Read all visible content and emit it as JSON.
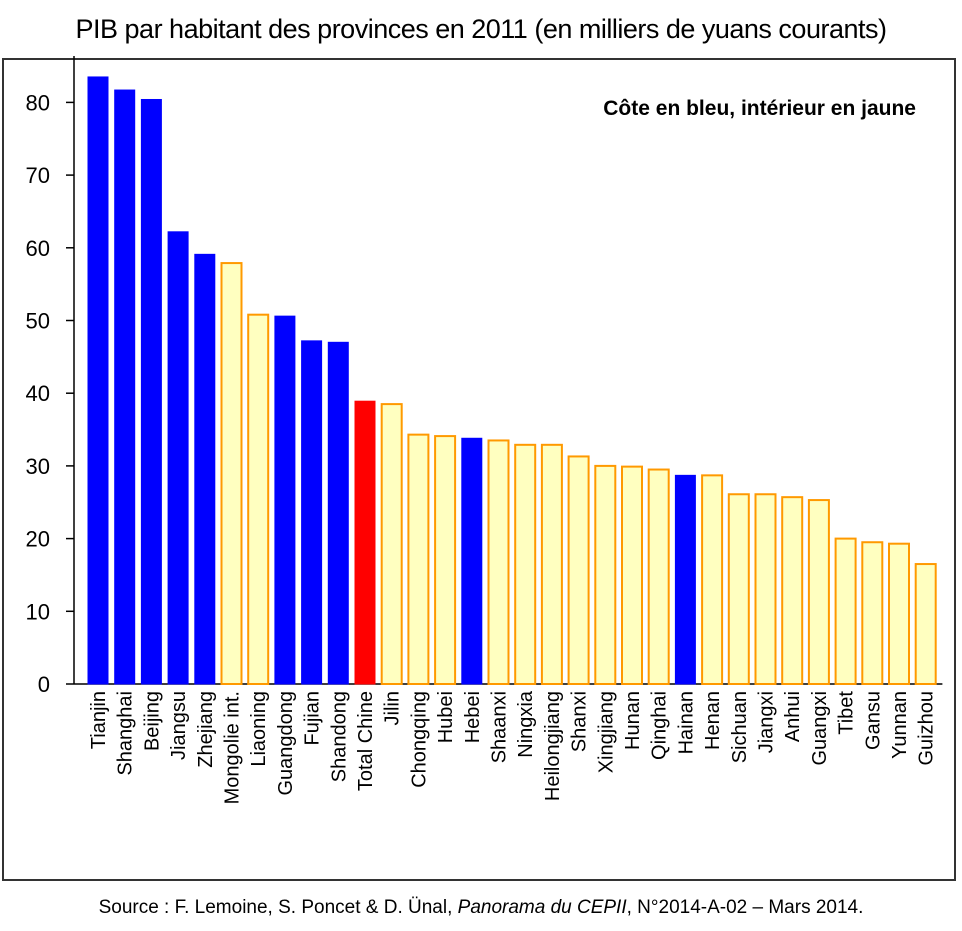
{
  "title": "PIB par habitant des provinces en 2011 (en milliers de yuans courants)",
  "source": {
    "prefix": "Source : F. Lemoine, S. Poncet & D. Ünal, ",
    "publication": "Panorama du CEPII",
    "suffix": ", N°2014-A-02 – Mars 2014."
  },
  "colors": {
    "coast": "#0000ff",
    "interior_fill": "#ffffc0",
    "interior_stroke": "#ff9900",
    "total": "#ff0000",
    "axis": "#000000"
  },
  "chart_data": {
    "type": "bar",
    "annotation": "Côte en bleu, intérieur en jaune",
    "ylim": [
      0,
      85
    ],
    "yticks": [
      0,
      10,
      20,
      30,
      40,
      50,
      60,
      70,
      80
    ],
    "grid": false,
    "categories": [
      "Tianjin",
      "Shanghai",
      "Beijing",
      "Jiangsu",
      "Zhejiang",
      "Mongolie int.",
      "Liaoning",
      "Guangdong",
      "Fujian",
      "Shandong",
      "Total Chine",
      "Jilin",
      "Chongqing",
      "Hubei",
      "Hebei",
      "Shaanxi",
      "Ningxia",
      "Heilongjiang",
      "Shanxi",
      "Xingjiang",
      "Hunan",
      "Qinghai",
      "Hainan",
      "Henan",
      "Sichuan",
      "Jiangxi",
      "Anhui",
      "Guangxi",
      "Tibet",
      "Gansu",
      "Yunnan",
      "Guizhou"
    ],
    "values": [
      83.5,
      81.7,
      80.4,
      62.2,
      59.1,
      57.9,
      50.8,
      50.6,
      47.2,
      47.0,
      38.9,
      38.5,
      34.3,
      34.1,
      33.8,
      33.5,
      32.9,
      32.9,
      31.3,
      30.0,
      29.9,
      29.5,
      28.7,
      28.7,
      26.1,
      26.1,
      25.7,
      25.3,
      20.0,
      19.5,
      19.3,
      16.5
    ],
    "groups": [
      "coast",
      "coast",
      "coast",
      "coast",
      "coast",
      "interior",
      "interior",
      "coast",
      "coast",
      "coast",
      "total",
      "interior",
      "interior",
      "interior",
      "coast",
      "interior",
      "interior",
      "interior",
      "interior",
      "interior",
      "interior",
      "interior",
      "coast",
      "interior",
      "interior",
      "interior",
      "interior",
      "interior",
      "interior",
      "interior",
      "interior",
      "interior"
    ]
  }
}
